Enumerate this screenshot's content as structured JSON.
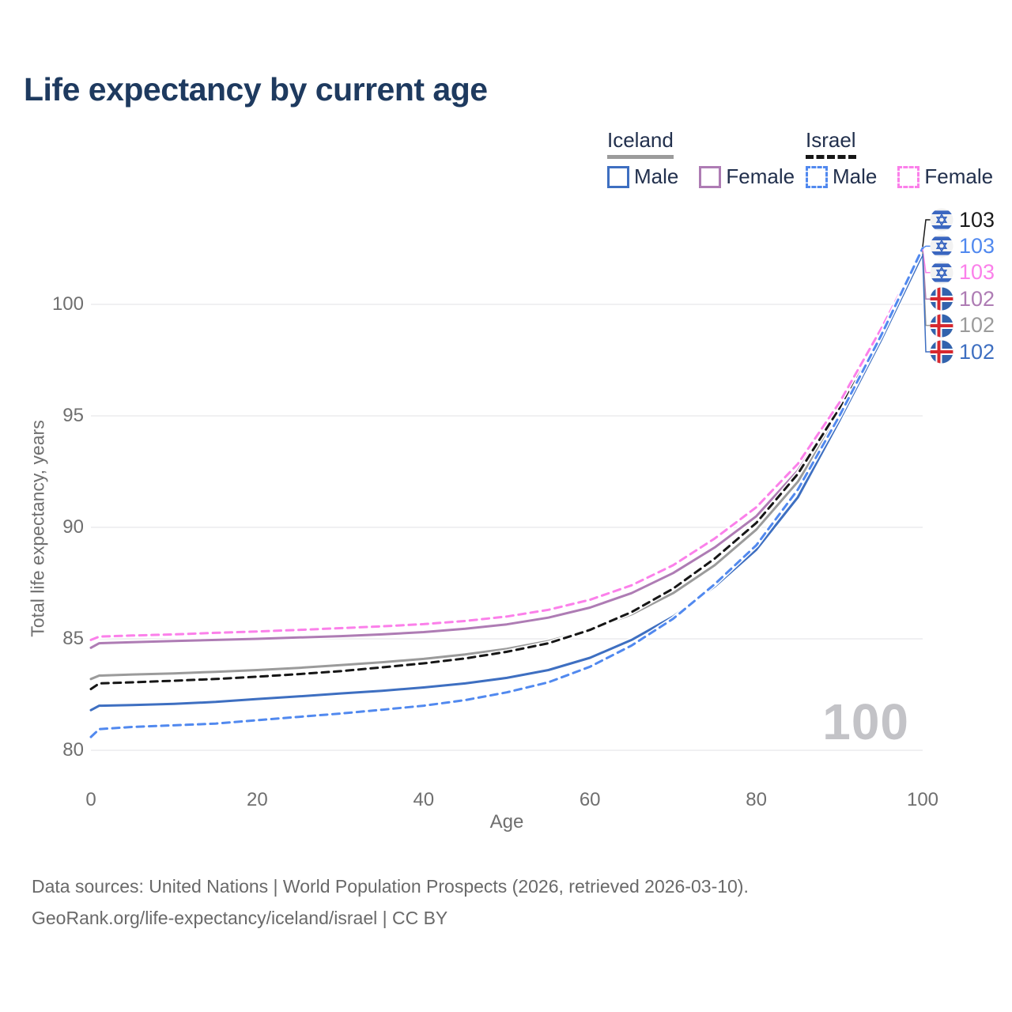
{
  "title": "Life expectancy by current age",
  "watermark": "100",
  "legend": {
    "groups": [
      {
        "label": "Iceland",
        "underline_style": "solid",
        "underline_color": "#9b9b9b",
        "items": [
          {
            "label": "Male",
            "color": "#3e6fc1",
            "dashed": false
          },
          {
            "label": "Female",
            "color": "#ae7cb4",
            "dashed": false
          }
        ]
      },
      {
        "label": "Israel",
        "underline_style": "dashed",
        "underline_color": "#161616",
        "items": [
          {
            "label": "Male",
            "color": "#5189ef",
            "dashed": true
          },
          {
            "label": "Female",
            "color": "#fb80ea",
            "dashed": true
          }
        ]
      }
    ]
  },
  "chart_data": {
    "type": "line",
    "title": "Life expectancy by current age",
    "xlabel": "Age",
    "ylabel": "Total life expectancy, years",
    "xlim": [
      0,
      100
    ],
    "ylim": [
      80,
      103
    ],
    "xticks": [
      0,
      20,
      40,
      60,
      80,
      100
    ],
    "yticks": [
      80,
      85,
      90,
      95,
      100
    ],
    "grid": "horizontal",
    "legend_position": "top-right",
    "series": [
      {
        "name": "Iceland Total",
        "country": "iceland",
        "sex": "total",
        "color": "#9b9b9b",
        "dashed": false,
        "points": [
          [
            0,
            83.2
          ],
          [
            1,
            83.35
          ],
          [
            5,
            83.4
          ],
          [
            10,
            83.45
          ],
          [
            15,
            83.52
          ],
          [
            20,
            83.6
          ],
          [
            25,
            83.7
          ],
          [
            30,
            83.82
          ],
          [
            35,
            83.95
          ],
          [
            40,
            84.1
          ],
          [
            45,
            84.3
          ],
          [
            50,
            84.55
          ],
          [
            55,
            84.9
          ],
          [
            60,
            85.4
          ],
          [
            65,
            86.1
          ],
          [
            70,
            87.05
          ],
          [
            75,
            88.3
          ],
          [
            80,
            89.9
          ],
          [
            85,
            92.05
          ],
          [
            90,
            95.1
          ],
          [
            95,
            98.65
          ],
          [
            100,
            102.34
          ]
        ]
      },
      {
        "name": "Iceland Female",
        "country": "iceland",
        "sex": "female",
        "color": "#ae7cb4",
        "dashed": false,
        "points": [
          [
            0,
            84.6
          ],
          [
            1,
            84.8
          ],
          [
            5,
            84.85
          ],
          [
            10,
            84.9
          ],
          [
            15,
            84.95
          ],
          [
            20,
            85.0
          ],
          [
            25,
            85.06
          ],
          [
            30,
            85.12
          ],
          [
            35,
            85.2
          ],
          [
            40,
            85.3
          ],
          [
            45,
            85.45
          ],
          [
            50,
            85.65
          ],
          [
            55,
            85.95
          ],
          [
            60,
            86.4
          ],
          [
            65,
            87.05
          ],
          [
            70,
            87.95
          ],
          [
            75,
            89.1
          ],
          [
            80,
            90.5
          ],
          [
            85,
            92.55
          ],
          [
            90,
            95.35
          ],
          [
            95,
            98.75
          ],
          [
            100,
            102.4
          ]
        ]
      },
      {
        "name": "Iceland Male",
        "country": "iceland",
        "sex": "male",
        "color": "#3e6fc1",
        "dashed": false,
        "points": [
          [
            0,
            81.8
          ],
          [
            1,
            82.0
          ],
          [
            5,
            82.03
          ],
          [
            10,
            82.08
          ],
          [
            15,
            82.17
          ],
          [
            20,
            82.3
          ],
          [
            25,
            82.42
          ],
          [
            30,
            82.55
          ],
          [
            35,
            82.67
          ],
          [
            40,
            82.82
          ],
          [
            45,
            83.0
          ],
          [
            50,
            83.25
          ],
          [
            55,
            83.6
          ],
          [
            60,
            84.15
          ],
          [
            65,
            84.95
          ],
          [
            70,
            86.0
          ],
          [
            75,
            87.35
          ],
          [
            80,
            89.0
          ],
          [
            85,
            91.35
          ],
          [
            90,
            94.8
          ],
          [
            95,
            98.4
          ],
          [
            100,
            102.27
          ]
        ]
      },
      {
        "name": "Israel Total",
        "country": "israel",
        "sex": "total",
        "color": "#161616",
        "dashed": true,
        "points": [
          [
            0,
            82.75
          ],
          [
            1,
            83.0
          ],
          [
            5,
            83.05
          ],
          [
            10,
            83.12
          ],
          [
            15,
            83.2
          ],
          [
            20,
            83.3
          ],
          [
            25,
            83.42
          ],
          [
            30,
            83.55
          ],
          [
            35,
            83.72
          ],
          [
            40,
            83.9
          ],
          [
            45,
            84.12
          ],
          [
            50,
            84.42
          ],
          [
            55,
            84.8
          ],
          [
            60,
            85.4
          ],
          [
            65,
            86.2
          ],
          [
            70,
            87.25
          ],
          [
            75,
            88.6
          ],
          [
            80,
            90.2
          ],
          [
            85,
            92.4
          ],
          [
            90,
            95.35
          ],
          [
            95,
            98.8
          ],
          [
            100,
            102.58
          ]
        ]
      },
      {
        "name": "Israel Female",
        "country": "israel",
        "sex": "female",
        "color": "#fb80ea",
        "dashed": true,
        "points": [
          [
            0,
            84.95
          ],
          [
            1,
            85.1
          ],
          [
            5,
            85.15
          ],
          [
            10,
            85.2
          ],
          [
            15,
            85.27
          ],
          [
            20,
            85.33
          ],
          [
            25,
            85.4
          ],
          [
            30,
            85.48
          ],
          [
            35,
            85.56
          ],
          [
            40,
            85.66
          ],
          [
            45,
            85.8
          ],
          [
            50,
            86.0
          ],
          [
            55,
            86.3
          ],
          [
            60,
            86.75
          ],
          [
            65,
            87.4
          ],
          [
            70,
            88.3
          ],
          [
            75,
            89.5
          ],
          [
            80,
            90.9
          ],
          [
            85,
            92.85
          ],
          [
            90,
            95.6
          ],
          [
            95,
            98.9
          ],
          [
            100,
            102.47
          ]
        ]
      },
      {
        "name": "Israel Male",
        "country": "israel",
        "sex": "male",
        "color": "#5189ef",
        "dashed": true,
        "points": [
          [
            0,
            80.6
          ],
          [
            1,
            80.95
          ],
          [
            5,
            81.05
          ],
          [
            10,
            81.12
          ],
          [
            15,
            81.2
          ],
          [
            20,
            81.35
          ],
          [
            25,
            81.5
          ],
          [
            30,
            81.65
          ],
          [
            35,
            81.82
          ],
          [
            40,
            82.0
          ],
          [
            45,
            82.25
          ],
          [
            50,
            82.6
          ],
          [
            55,
            83.05
          ],
          [
            60,
            83.75
          ],
          [
            65,
            84.7
          ],
          [
            70,
            85.9
          ],
          [
            75,
            87.45
          ],
          [
            80,
            89.2
          ],
          [
            85,
            91.7
          ],
          [
            90,
            95.0
          ],
          [
            95,
            98.6
          ],
          [
            100,
            102.52
          ]
        ]
      }
    ],
    "endpoint_labels": [
      {
        "value": "103",
        "flag": "israel",
        "color": "#1a1a1a",
        "series": "Israel Total"
      },
      {
        "value": "103",
        "flag": "israel",
        "color": "#5189ef",
        "series": "Israel Male"
      },
      {
        "value": "103",
        "flag": "israel",
        "color": "#fb80ea",
        "series": "Israel Female"
      },
      {
        "value": "102",
        "flag": "iceland",
        "color": "#ae7cb4",
        "series": "Iceland Female"
      },
      {
        "value": "102",
        "flag": "iceland",
        "color": "#9b9b9b",
        "series": "Iceland Total"
      },
      {
        "value": "102",
        "flag": "iceland",
        "color": "#3e6fc1",
        "series": "Iceland Male"
      }
    ]
  },
  "footer": {
    "line1": "Data sources: United Nations | World Population Prospects (2026, retrieved 2026-03-10).",
    "line2": "GeoRank.org/life-expectancy/iceland/israel | CC BY"
  }
}
